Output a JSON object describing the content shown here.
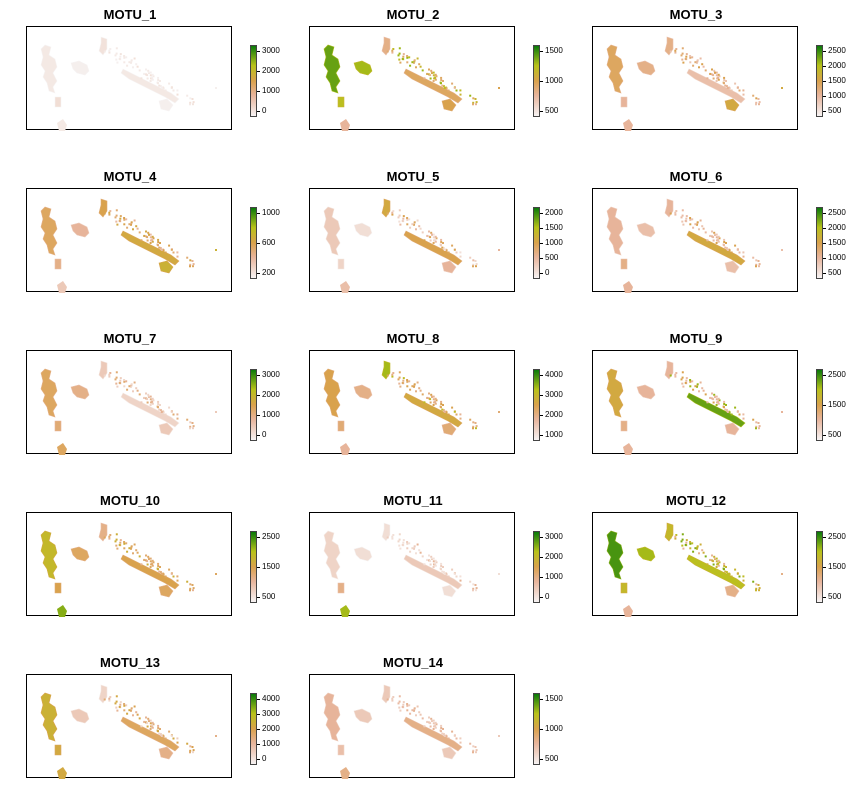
{
  "colors": {
    "low": "#f6f3f3",
    "mid_low": "#e7b49a",
    "mid": "#d9a24d",
    "mid_high": "#b8c21a",
    "high": "#0a7a0a"
  },
  "panels": [
    {
      "title": "MOTU_1",
      "legend": [
        "3000",
        "2000",
        "1000",
        "0"
      ],
      "intensity": [
        0.05,
        0.02,
        0.1,
        0.08,
        0.05,
        0.02
      ],
      "south": 0.05
    },
    {
      "title": "MOTU_2",
      "legend": [
        "1500",
        "1000",
        "500"
      ],
      "intensity": [
        0.85,
        0.75,
        0.7,
        0.35,
        0.45,
        0.5
      ],
      "south": 0.3
    },
    {
      "title": "MOTU_3",
      "legend": [
        "2500",
        "2000",
        "1500",
        "1000",
        "500"
      ],
      "intensity": [
        0.45,
        0.35,
        0.3,
        0.35,
        0.25,
        0.55
      ],
      "south": 0.3
    },
    {
      "title": "MOTU_4",
      "legend": [
        "1000",
        "600",
        "200"
      ],
      "intensity": [
        0.45,
        0.3,
        0.35,
        0.5,
        0.55,
        0.6
      ],
      "south": 0.2
    },
    {
      "title": "MOTU_5",
      "legend": [
        "2000",
        "1500",
        "1000",
        "500",
        "0"
      ],
      "intensity": [
        0.2,
        0.1,
        0.15,
        0.55,
        0.5,
        0.3
      ],
      "south": 0.25
    },
    {
      "title": "MOTU_6",
      "legend": [
        "2500",
        "2000",
        "1500",
        "1000",
        "500"
      ],
      "intensity": [
        0.3,
        0.25,
        0.35,
        0.3,
        0.55,
        0.25
      ],
      "south": 0.3
    },
    {
      "title": "MOTU_7",
      "legend": [
        "3000",
        "2000",
        "1000",
        "0"
      ],
      "intensity": [
        0.45,
        0.35,
        0.4,
        0.2,
        0.15,
        0.2
      ],
      "south": 0.45
    },
    {
      "title": "MOTU_8",
      "legend": [
        "4000",
        "3000",
        "2000",
        "1000"
      ],
      "intensity": [
        0.5,
        0.35,
        0.4,
        0.75,
        0.55,
        0.4
      ],
      "south": 0.3
    },
    {
      "title": "MOTU_9",
      "legend": [
        "2500",
        "1500",
        "500"
      ],
      "intensity": [
        0.55,
        0.3,
        0.35,
        0.3,
        0.85,
        0.3
      ],
      "south": 0.3
    },
    {
      "title": "MOTU_10",
      "legend": [
        "2500",
        "1500",
        "500"
      ],
      "intensity": [
        0.65,
        0.45,
        0.5,
        0.35,
        0.5,
        0.45
      ],
      "south": 0.8
    },
    {
      "title": "MOTU_11",
      "legend": [
        "3000",
        "2000",
        "1000",
        "0"
      ],
      "intensity": [
        0.15,
        0.1,
        0.35,
        0.1,
        0.2,
        0.1
      ],
      "south": 0.75
    },
    {
      "title": "MOTU_12",
      "legend": [
        "2500",
        "1500",
        "500"
      ],
      "intensity": [
        0.9,
        0.75,
        0.65,
        0.65,
        0.7,
        0.35
      ],
      "south": 0.3
    },
    {
      "title": "MOTU_13",
      "legend": [
        "4000",
        "3000",
        "2000",
        "1000",
        "0"
      ],
      "intensity": [
        0.6,
        0.2,
        0.55,
        0.15,
        0.45,
        0.35
      ],
      "south": 0.55
    },
    {
      "title": "MOTU_14",
      "legend": [
        "1500",
        "1000",
        "500"
      ],
      "intensity": [
        0.3,
        0.2,
        0.25,
        0.2,
        0.35,
        0.2
      ],
      "south": 0.35
    }
  ]
}
